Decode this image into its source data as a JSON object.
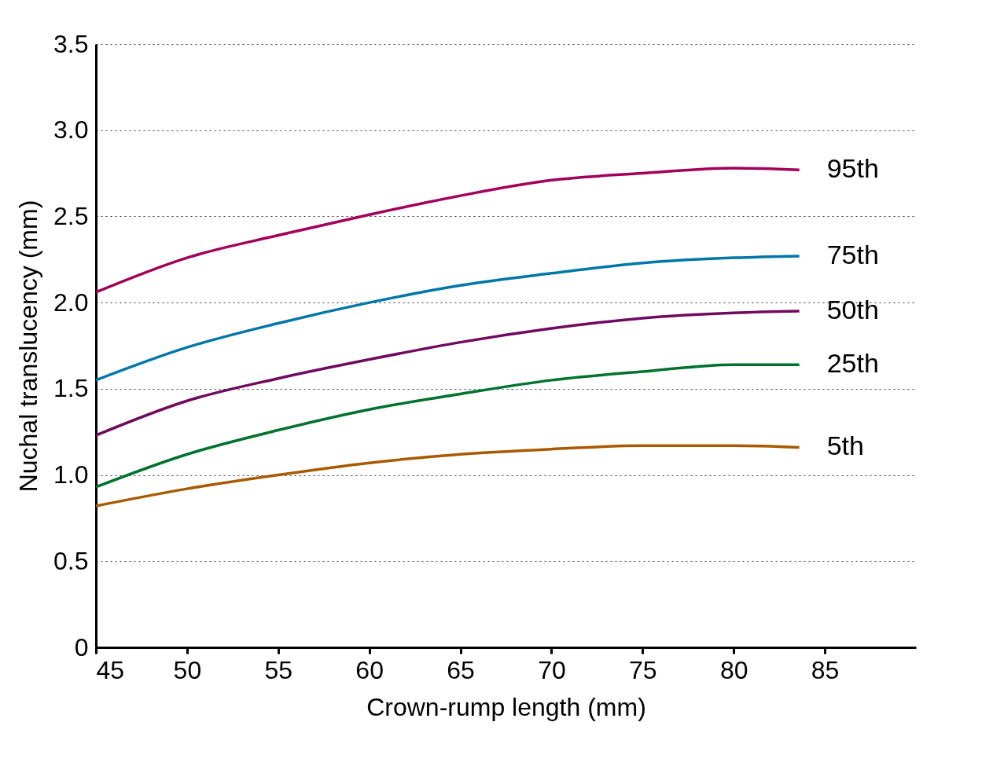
{
  "chart_data": {
    "type": "line",
    "xlabel": "Crown-rump length (mm)",
    "ylabel": "Nuchal translucency (mm)",
    "x": [
      45,
      50,
      55,
      60,
      65,
      70,
      75,
      80,
      83.6
    ],
    "series": [
      {
        "name": "95th",
        "color": "#a3005a",
        "values": [
          2.06,
          2.26,
          2.39,
          2.51,
          2.62,
          2.71,
          2.75,
          2.78,
          2.77
        ]
      },
      {
        "name": "75th",
        "color": "#0077a8",
        "values": [
          1.55,
          1.74,
          1.88,
          2.0,
          2.1,
          2.17,
          2.23,
          2.26,
          2.27
        ]
      },
      {
        "name": "50th",
        "color": "#6f0a5f",
        "values": [
          1.23,
          1.43,
          1.56,
          1.67,
          1.77,
          1.85,
          1.91,
          1.94,
          1.95
        ]
      },
      {
        "name": "25th",
        "color": "#00722d",
        "values": [
          0.93,
          1.12,
          1.26,
          1.38,
          1.47,
          1.55,
          1.6,
          1.64,
          1.64
        ]
      },
      {
        "name": "5th",
        "color": "#a85a00",
        "values": [
          0.82,
          0.92,
          1.0,
          1.07,
          1.12,
          1.15,
          1.17,
          1.17,
          1.16
        ]
      }
    ],
    "xlim": [
      45,
      90
    ],
    "xticks": [
      45,
      50,
      55,
      60,
      65,
      70,
      75,
      80,
      85
    ],
    "ylim": [
      0,
      3.5
    ],
    "yticks": [
      0,
      {
        "value": 0.5,
        "label": "0.5"
      },
      {
        "value": 1,
        "label": "1.0"
      },
      {
        "value": 1.5,
        "label": "1.5"
      },
      {
        "value": 2,
        "label": "2.0"
      },
      {
        "value": 2.5,
        "label": "2.5"
      },
      {
        "value": 3,
        "label": "3.0"
      },
      {
        "value": 3.5,
        "label": "3.5"
      }
    ],
    "grid": "y",
    "line_style": "solid",
    "marker": "none",
    "legend": false
  }
}
